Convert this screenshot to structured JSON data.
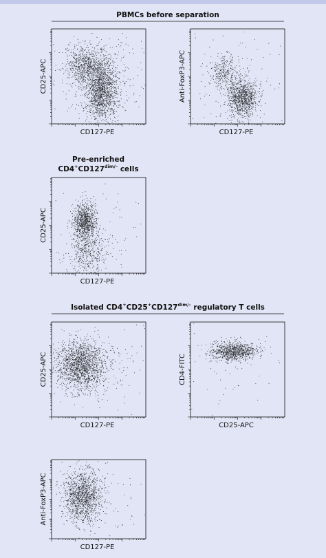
{
  "sections": [
    {
      "title": [
        {
          "text": "PBMCs before separation"
        }
      ],
      "plots": [
        {
          "y_label": "CD25-APC",
          "x_label": "CD127-PE"
        },
        {
          "y_label": "Anti-FoxP3-APC",
          "x_label": "CD127-PE"
        }
      ]
    },
    {
      "title_line1": "Pre-enriched",
      "title": [
        {
          "text": "CD4"
        },
        {
          "text": "+",
          "sup": true
        },
        {
          "text": "CD127"
        },
        {
          "text": "dim/–",
          "sup": true
        },
        {
          "text": " cells"
        }
      ],
      "plots": [
        {
          "y_label": "CD25-APC",
          "x_label": "CD127-PE"
        }
      ]
    },
    {
      "title": [
        {
          "text": "Isolated CD4"
        },
        {
          "text": "+",
          "sup": true
        },
        {
          "text": "CD25"
        },
        {
          "text": "+",
          "sup": true
        },
        {
          "text": "CD127"
        },
        {
          "text": "dim/–",
          "sup": true
        },
        {
          "text": " regulatory T cells"
        }
      ],
      "plots": [
        {
          "y_label": "CD25-APC",
          "x_label": "CD127-PE"
        },
        {
          "y_label": "CD4-FITC",
          "x_label": "CD25-APC"
        },
        {
          "y_label": "Anti-FoxP3-APC",
          "x_label": "CD127-PE"
        }
      ]
    }
  ]
}
